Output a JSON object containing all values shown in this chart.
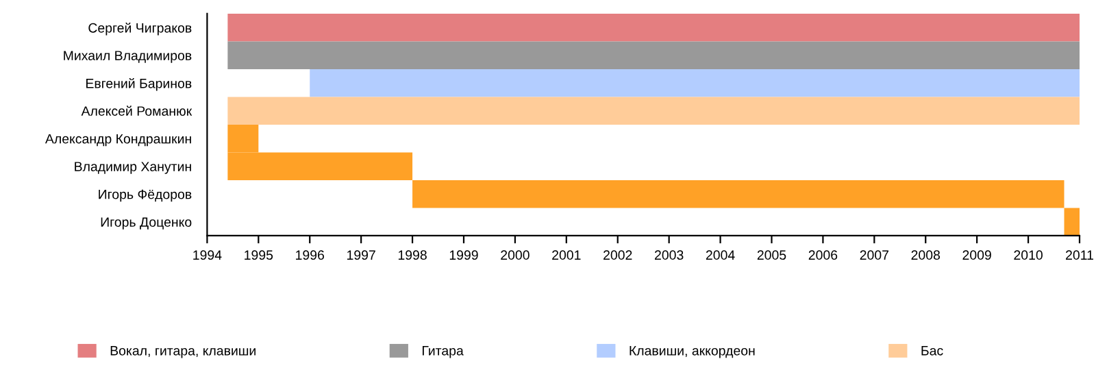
{
  "chart_data": {
    "type": "bar",
    "orientation": "horizontal",
    "categories": [
      "Сергей Чиграков",
      "Михаил Владимиров",
      "Евгений Баринов",
      "Алексей Романюк",
      "Александр Кондрашкин",
      "Владимир Ханутин",
      "Игорь Фёдоров",
      "Игорь Доценко"
    ],
    "series": [
      {
        "name": "Вокал, гитара, клавиши",
        "color": "#e47e80",
        "base": [
          1994.4,
          null,
          null,
          null,
          null,
          null,
          null,
          null
        ],
        "values": [
          16.6,
          null,
          null,
          null,
          null,
          null,
          null,
          null
        ]
      },
      {
        "name": "Гитара",
        "color": "#999999",
        "base": [
          null,
          1994.4,
          null,
          null,
          null,
          null,
          null,
          null
        ],
        "values": [
          null,
          16.6,
          null,
          null,
          null,
          null,
          null,
          null
        ]
      },
      {
        "name": "Клавиши, аккордеон",
        "color": "#b3cdff",
        "base": [
          null,
          null,
          1996,
          null,
          null,
          null,
          null,
          null
        ],
        "values": [
          null,
          null,
          15,
          null,
          null,
          null,
          null,
          null
        ]
      },
      {
        "name": "Бас",
        "color": "#ffcc99",
        "base": [
          null,
          null,
          null,
          1994.4,
          null,
          null,
          null,
          null
        ],
        "values": [
          null,
          null,
          null,
          16.6,
          null,
          null,
          null,
          null
        ]
      },
      {
        "color": "#ffa126",
        "base": [
          null,
          null,
          null,
          null,
          1994.4,
          1994.4,
          1998,
          2010.7
        ],
        "values": [
          null,
          null,
          null,
          null,
          0.6,
          3.6,
          12.7,
          0.3
        ]
      }
    ],
    "xlim": [
      1994,
      2011
    ],
    "xticks": [
      1994,
      1995,
      1996,
      1997,
      1998,
      1999,
      2000,
      2001,
      2002,
      2003,
      2004,
      2005,
      2006,
      2007,
      2008,
      2009,
      2010,
      2011
    ],
    "grid": false,
    "legend": "bottom"
  }
}
